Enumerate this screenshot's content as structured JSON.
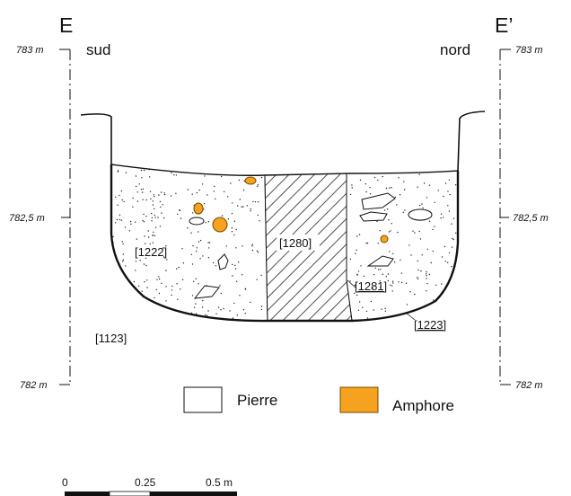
{
  "section": {
    "left_end": "E",
    "right_end": "E’",
    "left_direction": "sud",
    "right_direction": "nord"
  },
  "elevations": {
    "top": "783 m",
    "middle": "782,5 m",
    "bottom": "782 m"
  },
  "units": {
    "fill_south": "[1222]",
    "fill_center": "[1280]",
    "fill_north": "[1281]",
    "cut": "[1223]",
    "natural": "[1123]"
  },
  "legend": {
    "items": [
      {
        "label": "Pierre",
        "color": "#ffffff"
      },
      {
        "label": "Amphore",
        "color": "#f5a21e"
      }
    ]
  },
  "scale": {
    "labels": [
      "0",
      "0.25",
      "0.5 m"
    ]
  },
  "colors": {
    "amphora": "#f5a21e",
    "ink": "#111111"
  }
}
